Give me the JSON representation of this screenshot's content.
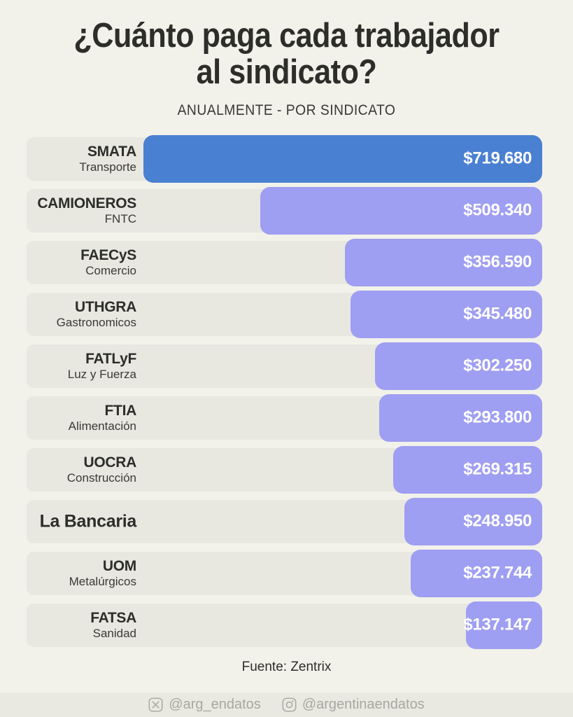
{
  "title": "¿Cuánto paga cada trabajador al sindicato?",
  "title_lines": [
    "¿Cuánto paga cada trabajador",
    "al sindicato?"
  ],
  "subtitle": "ANUALMENTE - POR SINDICATO",
  "source": "Fuente: Zentrix",
  "social": {
    "x_handle": "@arg_endatos",
    "instagram_handle": "@argentinaendatos"
  },
  "colors": {
    "background": "#f2f2ea",
    "row_background": "#e8e8e1",
    "bar_default": "#9e9ef2",
    "bar_highlight": "#4a80d2",
    "value_text": "#ffffff",
    "label_text": "#2d2d2a",
    "sublabel_text": "#3a3a36",
    "social_text": "#a8a8a1",
    "footer_strip": "#e9e9e2"
  },
  "chart_data": {
    "type": "bar",
    "orientation": "horizontal",
    "title": "¿Cuánto paga cada trabajador al sindicato?",
    "subtitle": "ANUALMENTE - POR SINDICATO",
    "unit": "ARS por año",
    "max_value": 719680,
    "bars": [
      {
        "name": "SMATA",
        "sector": "Transporte",
        "value": 719680,
        "value_label": "$719.680",
        "highlight": true
      },
      {
        "name": "CAMIONEROS",
        "sector": "FNTC",
        "value": 509340,
        "value_label": "$509.340",
        "highlight": false
      },
      {
        "name": "FAECyS",
        "sector": "Comercio",
        "value": 356590,
        "value_label": "$356.590",
        "highlight": false
      },
      {
        "name": "UTHGRA",
        "sector": "Gastronomicos",
        "value": 345480,
        "value_label": "$345.480",
        "highlight": false
      },
      {
        "name": "FATLyF",
        "sector": "Luz y Fuerza",
        "value": 302250,
        "value_label": "$302.250",
        "highlight": false
      },
      {
        "name": "FTIA",
        "sector": "Alimentación",
        "value": 293800,
        "value_label": "$293.800",
        "highlight": false
      },
      {
        "name": "UOCRA",
        "sector": "Construcción",
        "value": 269315,
        "value_label": "$269.315",
        "highlight": false
      },
      {
        "name": "La Bancaria",
        "sector": "",
        "value": 248950,
        "value_label": "$248.950",
        "highlight": false
      },
      {
        "name": "UOM",
        "sector": "Metalúrgicos",
        "value": 237744,
        "value_label": "$237.744",
        "highlight": false
      },
      {
        "name": "FATSA",
        "sector": "Sanidad",
        "value": 137147,
        "value_label": "$137.147",
        "highlight": false
      }
    ]
  }
}
